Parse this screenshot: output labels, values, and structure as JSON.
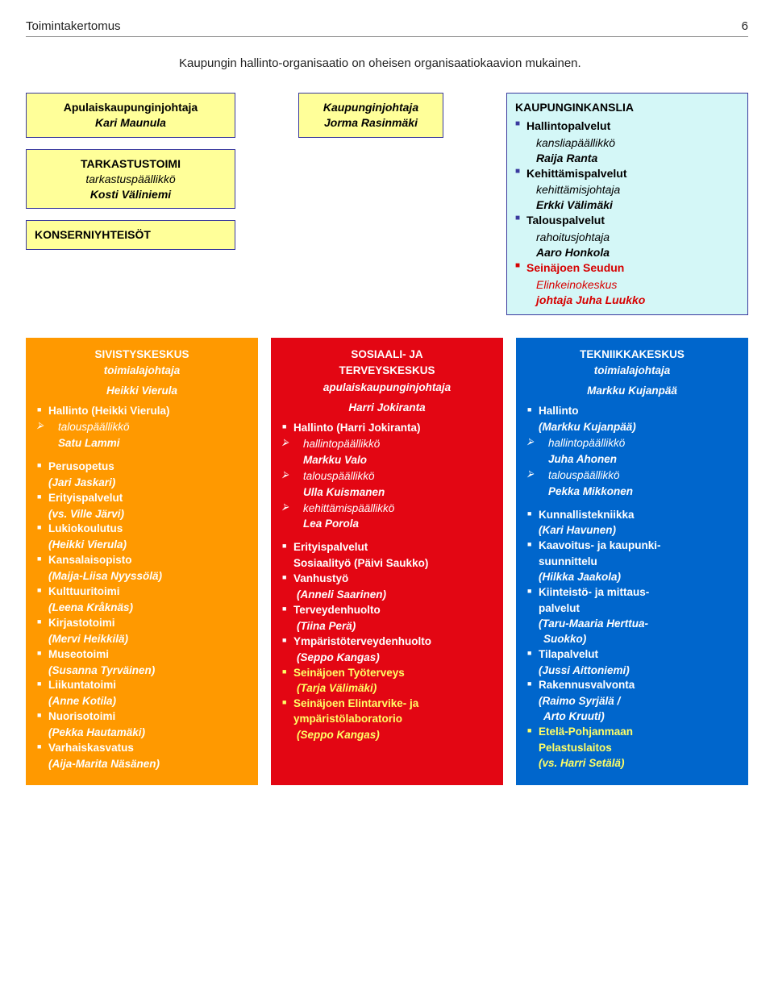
{
  "header": {
    "title": "Toimintakertomus",
    "page": "6"
  },
  "intro": "Kaupungin hallinto-organisaatio on oheisen organisaatiokaavion mukainen.",
  "left": {
    "box1": {
      "t1": "Apulaiskaupunginjohtaja",
      "t2": "Kari Maunula"
    },
    "box2": {
      "t1": "TARKASTUSTOIMI",
      "t2": "tarkastuspäällikkö",
      "t3": "Kosti Väliniemi"
    },
    "box3": {
      "t1": "KONSERNIYHTEISÖT"
    }
  },
  "center": {
    "t1": "Kaupunginjohtaja",
    "t2": "Jorma Rasinmäki"
  },
  "kanslia": {
    "head": "KAUPUNGINKANSLIA",
    "items": [
      {
        "l1": "Hallintopalvelut",
        "l2": "kansliapäällikkö",
        "l3": "Raija Ranta"
      },
      {
        "l1": "Kehittämispalvelut",
        "l2": "kehittämisjohtaja",
        "l3": "Erkki Välimäki"
      },
      {
        "l1": "Talouspalvelut",
        "l2": "rahoitusjohtaja",
        "l3": "Aaro Honkola"
      },
      {
        "l1": "Seinäjoen Seudun",
        "l2": "Elinkeinokeskus",
        "l3": "johtaja Juha Luukko",
        "red": true
      }
    ]
  },
  "siv": {
    "title": "SIVISTYSKESKUS",
    "sub1": "toimialajohtaja",
    "sub2": "Heikki Vierula",
    "hall": {
      "l": "Hallinto (Heikki Vierula)",
      "a1": "talouspäällikkö",
      "a2": "Satu Lammi"
    },
    "units": [
      {
        "n": "Perusopetus",
        "p": "(Jari Jaskari)"
      },
      {
        "n": "Erityispalvelut",
        "p": "(vs. Ville Järvi)"
      },
      {
        "n": "Lukiokoulutus",
        "p": "(Heikki Vierula)"
      },
      {
        "n": "Kansalaisopisto",
        "p": "(Maija-Liisa Nyyssölä)"
      },
      {
        "n": "Kulttuuritoimi",
        "p": "(Leena Kråknäs)"
      },
      {
        "n": "Kirjastotoimi",
        "p": "(Mervi Heikkilä)"
      },
      {
        "n": "Museotoimi",
        "p": "(Susanna Tyrväinen)"
      },
      {
        "n": "Liikuntatoimi",
        "p": "(Anne Kotila)"
      },
      {
        "n": "Nuorisotoimi",
        "p": "(Pekka Hautamäki)"
      },
      {
        "n": "Varhaiskasvatus",
        "p": "(Aija-Marita Näsänen)"
      }
    ]
  },
  "sote": {
    "title1": "SOSIAALI- JA",
    "title2": "TERVEYSKESKUS",
    "sub1": "apulaiskaupunginjohtaja",
    "sub2": "Harri Jokiranta",
    "hall": {
      "l": "Hallinto (Harri Jokiranta)",
      "arrows": [
        {
          "a": "hallintopäällikkö",
          "b": "Markku Valo"
        },
        {
          "a": "talouspäällikkö",
          "b": "Ulla Kuismanen"
        },
        {
          "a": "kehittämispäällikkö",
          "b": "Lea Porola"
        }
      ]
    },
    "units": [
      {
        "n": "Erityispalvelut",
        "p2": "Sosiaalityö (Päivi Saukko)"
      },
      {
        "n": "Vanhustyö",
        "p": "(Anneli Saarinen)"
      },
      {
        "n": "Terveydenhuolto",
        "p": "(Tiina Perä)"
      },
      {
        "n": "Ympäristöterveydenhuolto",
        "p": "(Seppo Kangas)"
      },
      {
        "n": "Seinäjoen Työterveys",
        "p": "(Tarja Välimäki)",
        "y": true
      },
      {
        "n": "Seinäjoen Elintarvike- ja ympäristölaboratorio",
        "p": "(Seppo Kangas)",
        "y": true
      }
    ]
  },
  "tek": {
    "title": "TEKNIIKKAKESKUS",
    "sub1": "toimialajohtaja",
    "sub2": "Markku Kujanpää",
    "hall": {
      "l1": "Hallinto",
      "l2": "(Markku Kujanpää)",
      "arrows": [
        {
          "a": "hallintopäällikkö",
          "b": "Juha Ahonen"
        },
        {
          "a": "talouspäällikkö",
          "b": "Pekka Mikkonen"
        }
      ]
    },
    "units": [
      {
        "n": "Kunnallistekniikka",
        "p": "(Kari Havunen)"
      },
      {
        "n": "Kaavoitus- ja kaupunki-",
        "n2": "suunnittelu",
        "p": "(Hilkka Jaakola)"
      },
      {
        "n": "Kiinteistö- ja mittaus-",
        "n2": "palvelut",
        "p": "(Taru-Maaria Herttua-",
        "p2": "Suokko)"
      },
      {
        "n": "Tilapalvelut",
        "p": "(Jussi Aittoniemi)"
      },
      {
        "n": "Rakennusvalvonta",
        "p": "(Raimo Syrjälä /",
        "p2": " Arto Kruuti)"
      },
      {
        "n": "Etelä-Pohjanmaan",
        "n2": "Pelastuslaitos",
        "p": "(vs. Harri Setälä)",
        "y": true
      }
    ]
  }
}
